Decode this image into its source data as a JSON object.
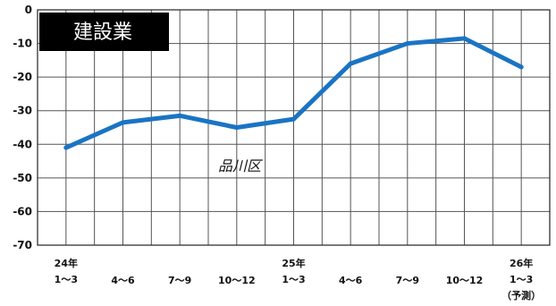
{
  "chart_data": {
    "type": "line",
    "title": "建設業",
    "series_label": "品川区",
    "categories": [
      [
        "24年",
        "1〜3"
      ],
      [
        "4〜6"
      ],
      [
        "7〜9"
      ],
      [
        "10〜12"
      ],
      [
        "25年",
        "1〜3"
      ],
      [
        "4〜6"
      ],
      [
        "7〜9"
      ],
      [
        "10〜12"
      ],
      [
        "26年",
        "1〜3",
        "（予測）"
      ]
    ],
    "series": [
      {
        "values": [
          -41,
          -33.5,
          -31.5,
          -35,
          -32.5,
          -16,
          -10,
          -8.5,
          -17
        ]
      }
    ],
    "yticks": [
      "0",
      "-10",
      "-20",
      "-30",
      "-40",
      "-50",
      "-60",
      "-70"
    ],
    "ylim": [
      -70,
      0
    ],
    "grid": true,
    "line_color": "#1a74c4"
  }
}
